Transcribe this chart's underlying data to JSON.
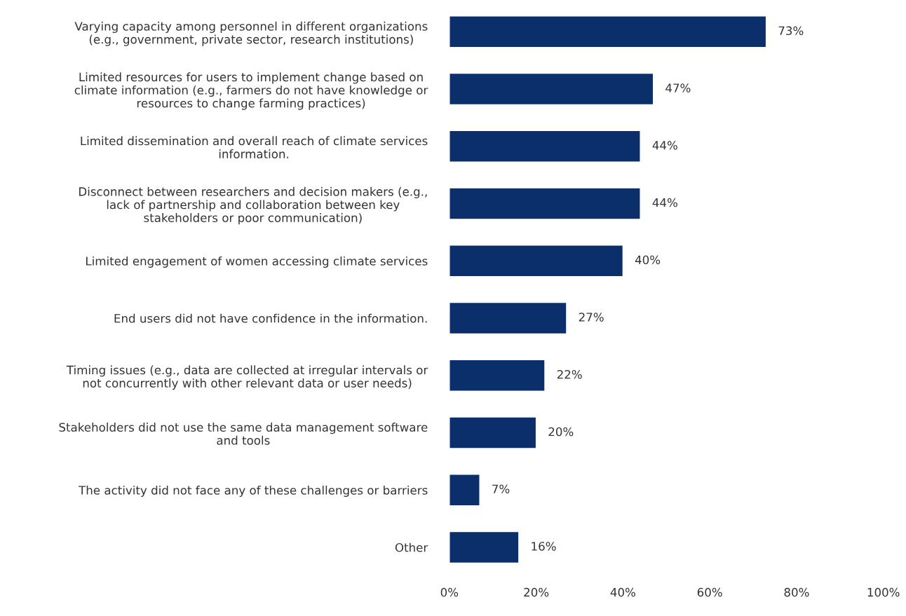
{
  "chart_data": {
    "type": "bar",
    "orientation": "horizontal",
    "categories": [
      "Varying capacity among personnel in different organizations\n(e.g., government, private sector, research institutions)",
      "Limited resources for users to implement change based on\nclimate information (e.g., farmers do not have knowledge or\nresources to change farming practices)",
      "Limited dissemination and overall reach of climate services\ninformation.",
      "Disconnect between researchers and decision makers (e.g.,\nlack of partnership and collaboration between key\nstakeholders or poor communication)",
      "Limited engagement of women accessing climate services",
      "End users did not have confidence in the information.",
      "Timing issues (e.g., data are collected at irregular intervals or\nnot concurrently with other relevant data or user needs)",
      "Stakeholders did not use the same data management software\nand tools",
      "The activity did not face any of these challenges or barriers",
      "Other"
    ],
    "values": [
      73,
      47,
      44,
      44,
      40,
      27,
      22,
      20,
      7,
      16
    ],
    "value_labels": [
      "73%",
      "47%",
      "44%",
      "44%",
      "40%",
      "27%",
      "22%",
      "20%",
      "7%",
      "16%"
    ],
    "color": "#0b2f6b",
    "xlim": [
      0,
      100
    ],
    "xticks": [
      {
        "value": 0,
        "label": "0%"
      },
      {
        "value": 20,
        "label": "20%"
      },
      {
        "value": 40,
        "label": "40%"
      },
      {
        "value": 60,
        "label": "60%"
      },
      {
        "value": 80,
        "label": "80%"
      },
      {
        "value": 100,
        "label": "100%"
      }
    ],
    "grid": false,
    "legend": false
  }
}
